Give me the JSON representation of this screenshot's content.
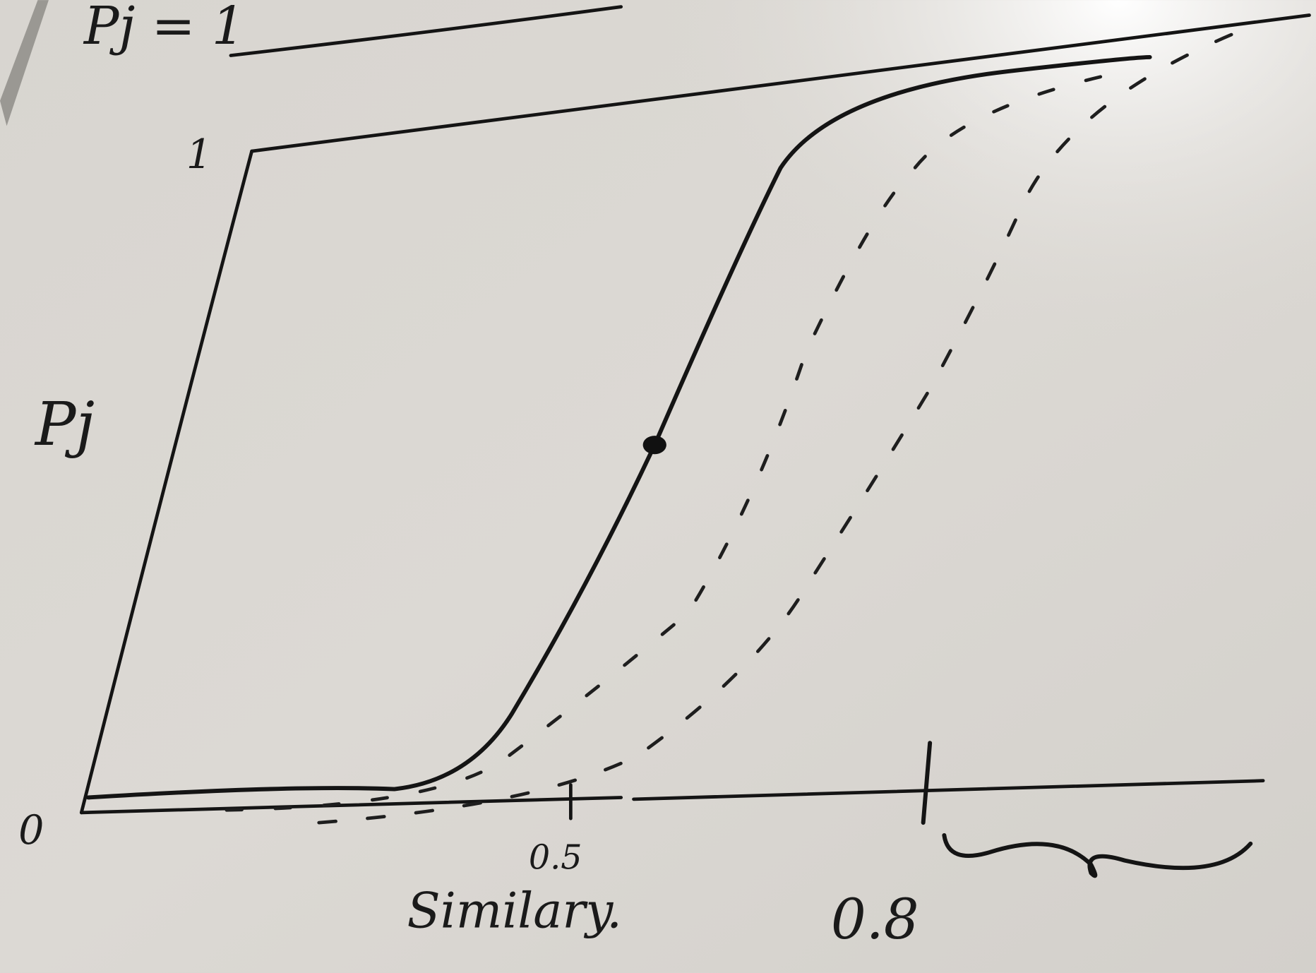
{
  "whiteboard": {
    "top_formula": "Pj = 1",
    "y_axis_label": "Pj",
    "y_tick_top": "1",
    "y_tick_bottom": "0",
    "x_tick_mid": "0.5",
    "x_tick_right": "0.8",
    "x_axis_label": "Similary."
  }
}
